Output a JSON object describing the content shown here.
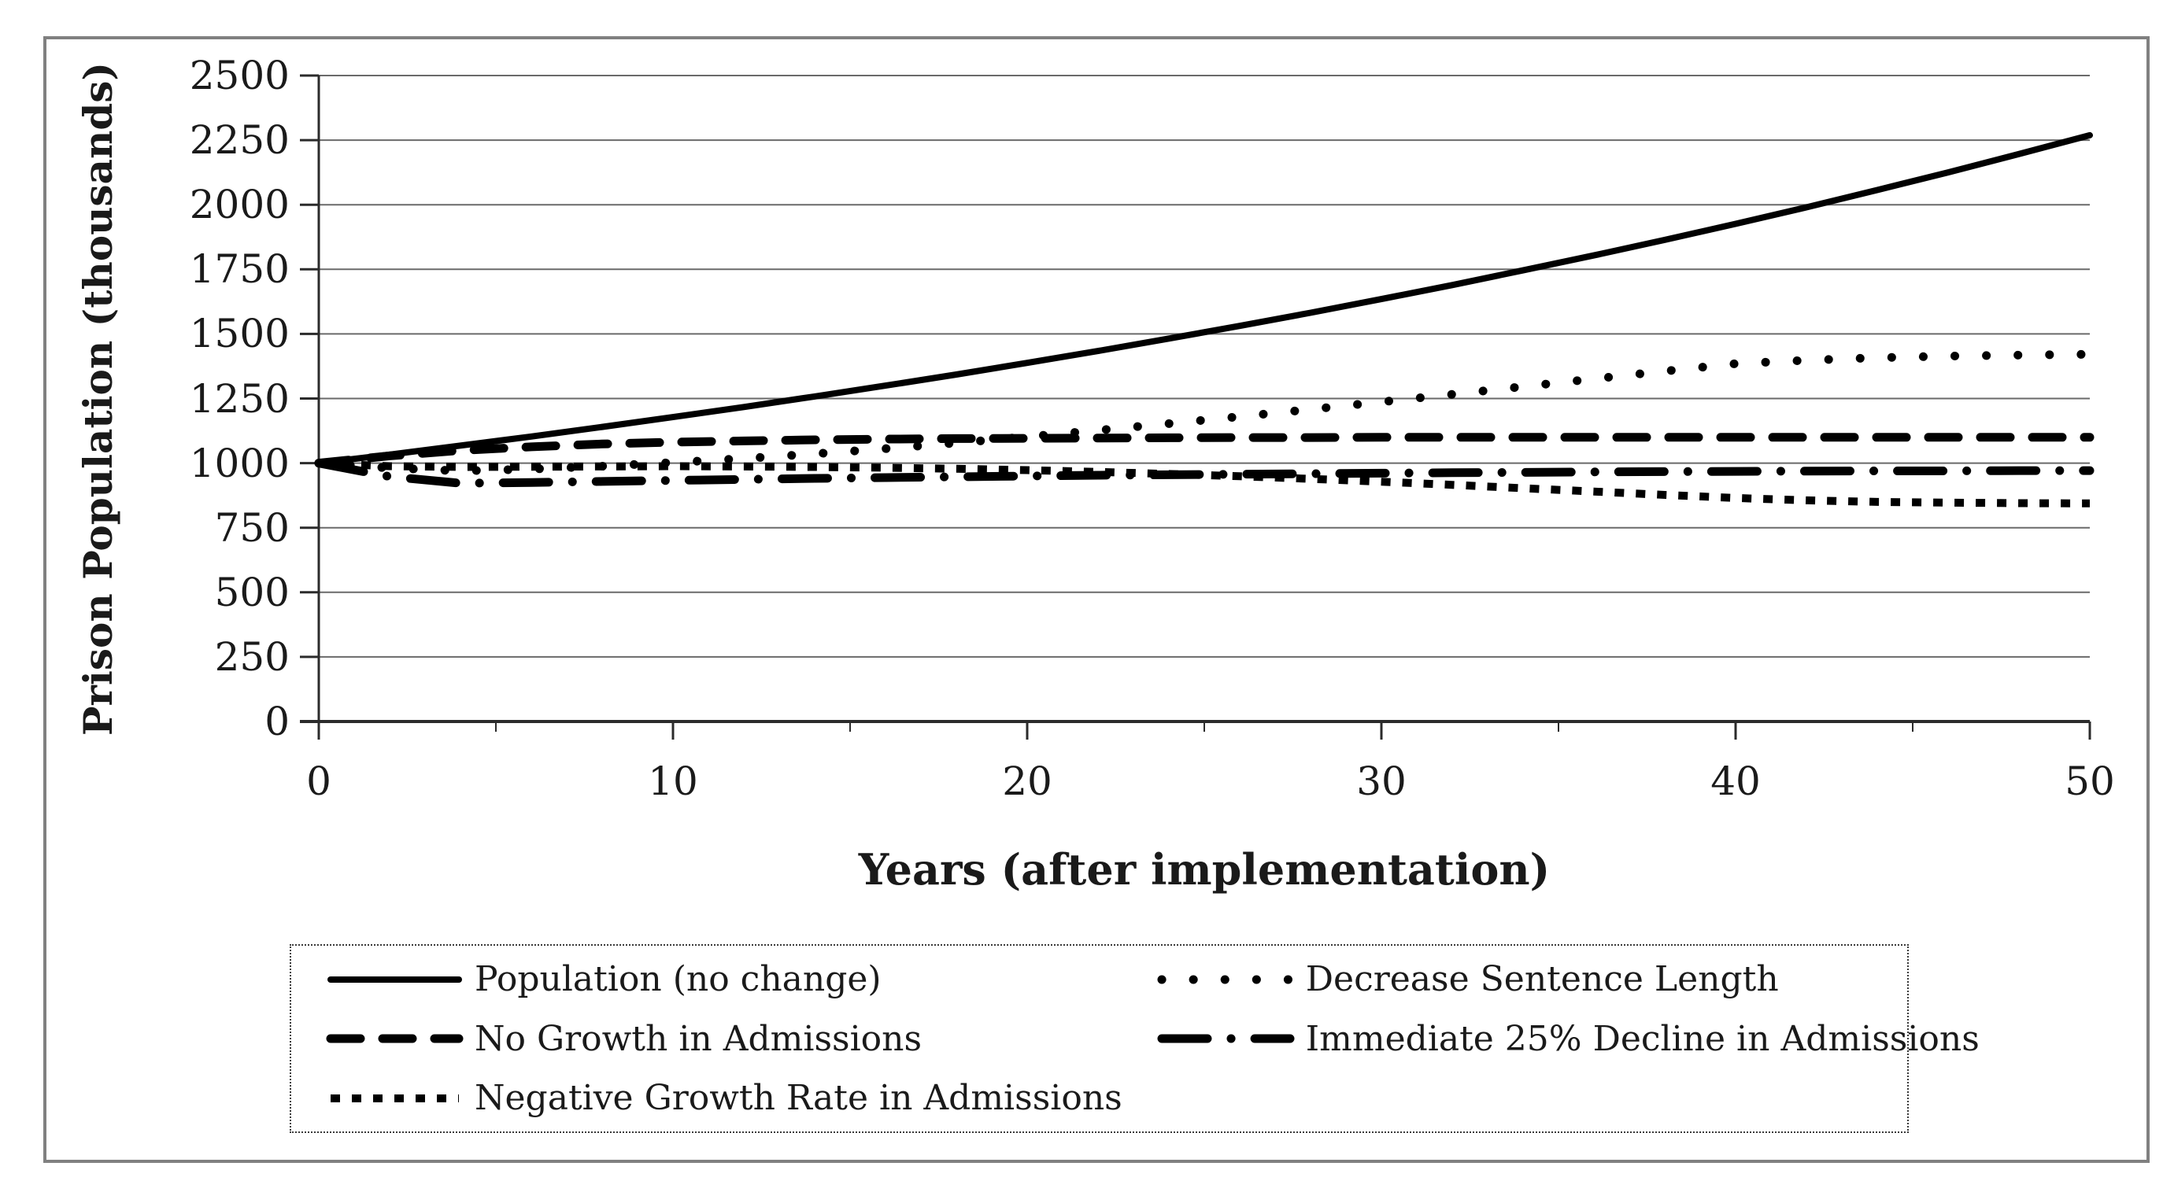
{
  "figure": {
    "background": "#ffffff",
    "border_color": "#808080",
    "line_color": "#000000",
    "gridline_color": "#6a6a6a"
  },
  "chart_data": {
    "type": "line",
    "title": "",
    "xlabel": "Years (after implementation)",
    "ylabel": "Prison Population (thousands)",
    "xlim": [
      0,
      50
    ],
    "ylim": [
      0,
      2500
    ],
    "x_ticks": [
      0,
      10,
      20,
      30,
      40,
      50
    ],
    "y_ticks": [
      0,
      250,
      500,
      750,
      1000,
      1250,
      1500,
      1750,
      2000,
      2250,
      2500
    ],
    "grid": "horizontal",
    "legend_position": "bottom-box-two-columns",
    "x": [
      0,
      2,
      4,
      6,
      8,
      10,
      12,
      14,
      16,
      18,
      20,
      22,
      24,
      26,
      28,
      30,
      32,
      34,
      36,
      38,
      40,
      42,
      44,
      46,
      48,
      50
    ],
    "series": [
      {
        "name": "Population (no change)",
        "style": "solid",
        "color": "#000000",
        "values": [
          1000,
          1033,
          1068,
          1103,
          1140,
          1178,
          1217,
          1258,
          1300,
          1343,
          1388,
          1434,
          1482,
          1531,
          1582,
          1635,
          1689,
          1746,
          1804,
          1864,
          1926,
          1990,
          2057,
          2125,
          2196,
          2269
        ]
      },
      {
        "name": "Decrease Sentence Length",
        "style": "round-dot",
        "color": "#000000",
        "values": [
          1000,
          981,
          970,
          977,
          988,
          1002,
          1018,
          1036,
          1056,
          1078,
          1102,
          1127,
          1153,
          1180,
          1208,
          1237,
          1266,
          1296,
          1326,
          1356,
          1385,
          1398,
          1408,
          1414,
          1418,
          1421
        ]
      },
      {
        "name": "No Growth in Admissions",
        "style": "dash",
        "color": "#000000",
        "values": [
          1000,
          1028,
          1049,
          1063,
          1074,
          1081,
          1086,
          1090,
          1093,
          1095,
          1096,
          1097,
          1098,
          1099,
          1099,
          1100,
          1100,
          1100,
          1100,
          1100,
          1100,
          1100,
          1100,
          1100,
          1100,
          1100
        ]
      },
      {
        "name": "Immediate 25% Decline in Admissions",
        "style": "dash-dot",
        "color": "#000000",
        "values": [
          1000,
          948,
          922,
          925,
          929,
          933,
          937,
          941,
          944,
          947,
          950,
          953,
          955,
          957,
          959,
          961,
          963,
          964,
          966,
          967,
          968,
          969,
          970,
          970,
          971,
          971
        ]
      },
      {
        "name": "Negative Growth Rate in Admissions",
        "style": "square-dot",
        "color": "#000000",
        "values": [
          1000,
          988,
          985,
          986,
          987,
          988,
          987,
          985,
          982,
          978,
          973,
          966,
          958,
          949,
          939,
          928,
          916,
          903,
          890,
          877,
          865,
          856,
          850,
          847,
          845,
          844
        ]
      }
    ]
  }
}
